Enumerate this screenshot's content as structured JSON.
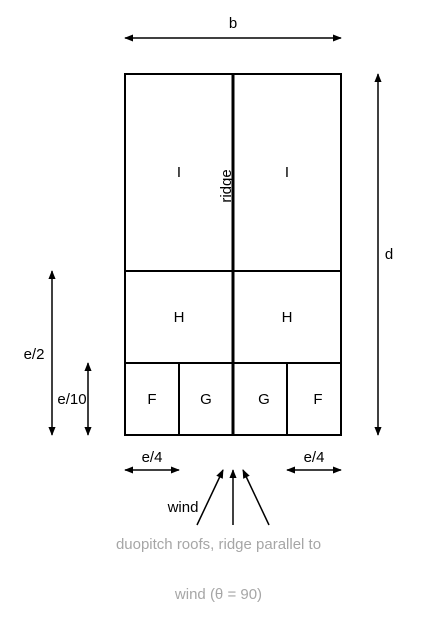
{
  "dimensions": {
    "width_label": "b",
    "depth_label": "d",
    "e_half_label": "e/2",
    "e_tenth_label": "e/10",
    "e_quarter_left_label": "e/4",
    "e_quarter_right_label": "e/4"
  },
  "zones": {
    "I_left": "I",
    "I_right": "I",
    "H_left": "H",
    "H_right": "H",
    "F_left": "F",
    "G_left": "G",
    "G_right": "G",
    "F_right": "F"
  },
  "ridge_label": "ridge",
  "wind_label": "wind",
  "caption": {
    "line1": "duopitch roofs, ridge parallel to",
    "line2": "wind (θ = 90)"
  }
}
